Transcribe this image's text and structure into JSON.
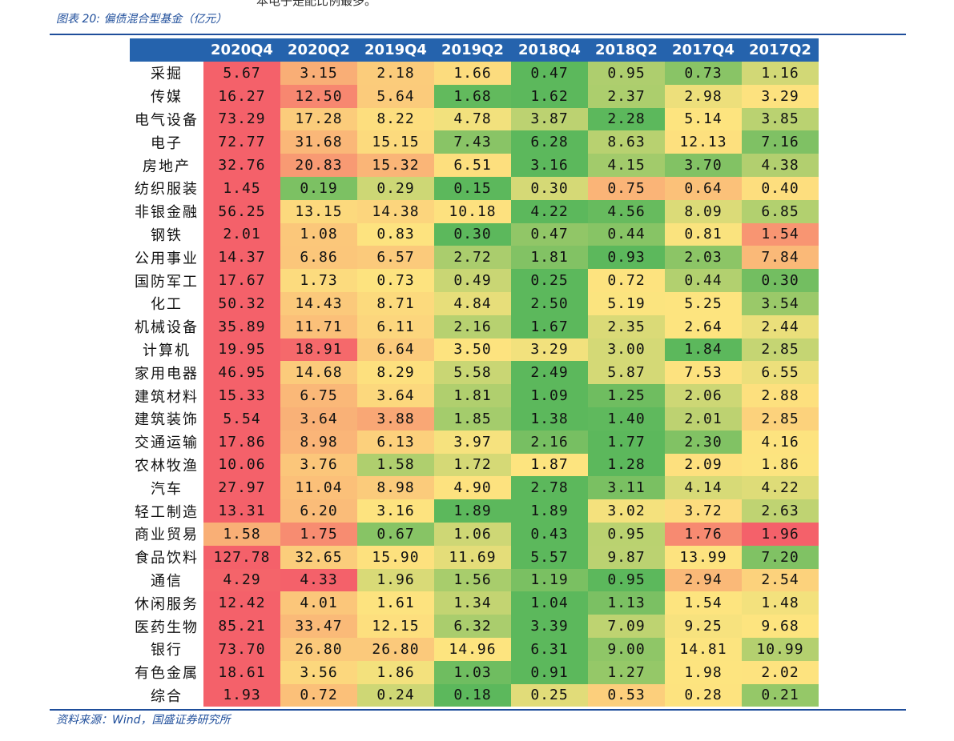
{
  "page": {
    "top_fragment": "本电子是配比例最多。",
    "figure_title": "图表 20:  偏债混合型基金（亿元）",
    "source": "资料来源：Wind，国盛证券研究所"
  },
  "chart_data": {
    "type": "heatmap",
    "color_scale": {
      "low": "#5cb85c",
      "mid": "#fde47f",
      "high": "#f4616a"
    },
    "columns": [
      "2020Q4",
      "2020Q2",
      "2019Q4",
      "2019Q2",
      "2018Q4",
      "2018Q2",
      "2017Q4",
      "2017Q2"
    ],
    "rows": [
      {
        "label": "采掘",
        "values": [
          "5.67",
          "3.15",
          "2.18",
          "1.66",
          "0.47",
          "0.95",
          "0.73",
          "1.16"
        ]
      },
      {
        "label": "传媒",
        "values": [
          "16.27",
          "12.50",
          "5.64",
          "1.68",
          "1.62",
          "2.37",
          "2.98",
          "3.29"
        ]
      },
      {
        "label": "电气设备",
        "values": [
          "73.29",
          "17.28",
          "8.22",
          "4.78",
          "3.87",
          "2.28",
          "5.14",
          "3.85"
        ]
      },
      {
        "label": "电子",
        "values": [
          "72.77",
          "31.68",
          "15.15",
          "7.43",
          "6.28",
          "8.63",
          "12.13",
          "7.16"
        ]
      },
      {
        "label": "房地产",
        "values": [
          "32.76",
          "20.83",
          "15.32",
          "6.51",
          "3.16",
          "4.15",
          "3.70",
          "4.38"
        ]
      },
      {
        "label": "纺织服装",
        "values": [
          "1.45",
          "0.19",
          "0.29",
          "0.15",
          "0.30",
          "0.75",
          "0.64",
          "0.40"
        ]
      },
      {
        "label": "非银金融",
        "values": [
          "56.25",
          "13.15",
          "14.38",
          "10.18",
          "4.22",
          "4.56",
          "8.09",
          "6.85"
        ]
      },
      {
        "label": "钢铁",
        "values": [
          "2.01",
          "1.08",
          "0.83",
          "0.30",
          "0.47",
          "0.44",
          "0.81",
          "1.54"
        ]
      },
      {
        "label": "公用事业",
        "values": [
          "14.37",
          "6.86",
          "6.57",
          "2.72",
          "1.81",
          "0.93",
          "2.03",
          "7.84"
        ]
      },
      {
        "label": "国防军工",
        "values": [
          "17.67",
          "1.73",
          "0.73",
          "0.49",
          "0.25",
          "0.72",
          "0.44",
          "0.30"
        ]
      },
      {
        "label": "化工",
        "values": [
          "50.32",
          "14.43",
          "8.71",
          "4.84",
          "2.50",
          "5.19",
          "5.25",
          "3.54"
        ]
      },
      {
        "label": "机械设备",
        "values": [
          "35.89",
          "11.71",
          "6.11",
          "2.16",
          "1.67",
          "2.35",
          "2.64",
          "2.44"
        ]
      },
      {
        "label": "计算机",
        "values": [
          "19.95",
          "18.91",
          "6.64",
          "3.50",
          "3.29",
          "3.00",
          "1.84",
          "2.85"
        ]
      },
      {
        "label": "家用电器",
        "values": [
          "46.95",
          "14.68",
          "8.29",
          "5.58",
          "2.49",
          "5.87",
          "7.53",
          "6.55"
        ]
      },
      {
        "label": "建筑材料",
        "values": [
          "15.33",
          "6.75",
          "3.64",
          "1.81",
          "1.09",
          "1.25",
          "2.06",
          "2.88"
        ]
      },
      {
        "label": "建筑装饰",
        "values": [
          "5.54",
          "3.64",
          "3.88",
          "1.85",
          "1.38",
          "1.40",
          "2.01",
          "2.85"
        ]
      },
      {
        "label": "交通运输",
        "values": [
          "17.86",
          "8.98",
          "6.13",
          "3.97",
          "2.16",
          "1.77",
          "2.30",
          "4.16"
        ]
      },
      {
        "label": "农林牧渔",
        "values": [
          "10.06",
          "3.76",
          "1.58",
          "1.72",
          "1.87",
          "1.28",
          "2.09",
          "1.86"
        ]
      },
      {
        "label": "汽车",
        "values": [
          "27.97",
          "11.04",
          "8.98",
          "4.90",
          "2.78",
          "3.11",
          "4.14",
          "4.22"
        ]
      },
      {
        "label": "轻工制造",
        "values": [
          "13.31",
          "6.20",
          "3.16",
          "1.89",
          "1.89",
          "3.02",
          "3.72",
          "2.63"
        ]
      },
      {
        "label": "商业贸易",
        "values": [
          "1.58",
          "1.75",
          "0.67",
          "1.06",
          "0.43",
          "0.95",
          "1.76",
          "1.96"
        ]
      },
      {
        "label": "食品饮料",
        "values": [
          "127.78",
          "32.65",
          "15.90",
          "11.69",
          "5.57",
          "9.87",
          "13.99",
          "7.20"
        ]
      },
      {
        "label": "通信",
        "values": [
          "4.29",
          "4.33",
          "1.96",
          "1.56",
          "1.19",
          "0.95",
          "2.94",
          "2.54"
        ]
      },
      {
        "label": "休闲服务",
        "values": [
          "12.42",
          "4.01",
          "1.61",
          "1.34",
          "1.04",
          "1.13",
          "1.54",
          "1.48"
        ]
      },
      {
        "label": "医药生物",
        "values": [
          "85.21",
          "33.47",
          "12.15",
          "6.32",
          "3.39",
          "7.09",
          "9.25",
          "9.68"
        ]
      },
      {
        "label": "银行",
        "values": [
          "73.70",
          "26.80",
          "26.80",
          "14.96",
          "6.31",
          "9.00",
          "14.81",
          "10.99"
        ]
      },
      {
        "label": "有色金属",
        "values": [
          "18.61",
          "3.56",
          "1.86",
          "1.03",
          "0.91",
          "1.27",
          "1.98",
          "2.02"
        ]
      },
      {
        "label": "综合",
        "values": [
          "1.93",
          "0.72",
          "0.24",
          "0.18",
          "0.25",
          "0.53",
          "0.28",
          "0.21"
        ]
      }
    ]
  }
}
